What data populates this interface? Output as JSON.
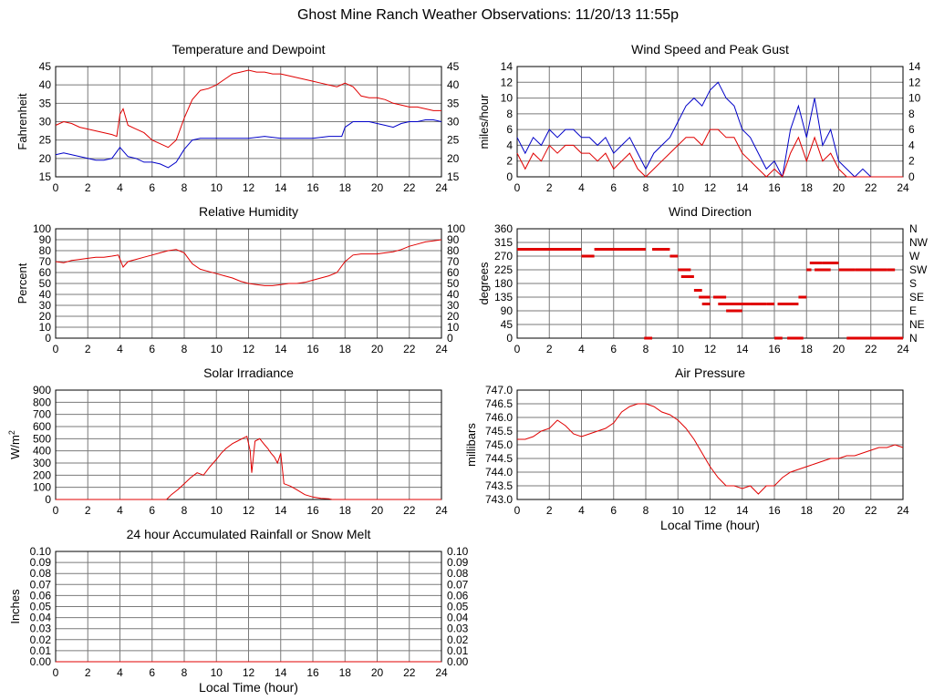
{
  "page_title": "Ghost Mine Ranch Weather Observations: 11/20/13 11:55p",
  "colors": {
    "red": "#e00000",
    "blue": "#0000c8",
    "grid": "#7a7a7a",
    "frame": "#000000"
  },
  "chart_data": [
    {
      "id": "temperature",
      "type": "line",
      "title": "Temperature and Dewpoint",
      "ylabel": "Fahrenheit",
      "xlabel": "",
      "xlim": [
        0,
        24
      ],
      "ylim": [
        15,
        45
      ],
      "xticks": [
        "0",
        "2",
        "4",
        "6",
        "8",
        "10",
        "12",
        "14",
        "16",
        "18",
        "20",
        "22",
        "24"
      ],
      "yticks": [
        "15",
        "20",
        "25",
        "30",
        "35",
        "40",
        "45"
      ],
      "right_axis": true,
      "series": [
        {
          "color": "#e00000",
          "x": [
            0,
            0.5,
            1,
            1.5,
            2,
            2.5,
            3,
            3.5,
            3.8,
            4,
            4.2,
            4.5,
            5,
            5.5,
            6,
            6.5,
            7,
            7.5,
            8,
            8.5,
            9,
            9.5,
            10,
            10.5,
            11,
            11.5,
            12,
            12.5,
            13,
            13.5,
            14,
            14.5,
            15,
            15.5,
            16,
            16.5,
            17,
            17.5,
            18,
            18.5,
            19,
            19.5,
            20,
            20.5,
            21,
            21.5,
            22,
            22.5,
            23,
            23.5,
            24
          ],
          "y": [
            29,
            30,
            29.5,
            28.5,
            28,
            27.5,
            27,
            26.5,
            26,
            32,
            33.5,
            29,
            28,
            27,
            25,
            24,
            23,
            25,
            31,
            36,
            38.5,
            39,
            40,
            41.5,
            43,
            43.5,
            44,
            43.5,
            43.5,
            43,
            43,
            42.5,
            42,
            41.5,
            41,
            40.5,
            40,
            39.5,
            40.5,
            39.5,
            37,
            36.5,
            36.5,
            36,
            35,
            34.5,
            34,
            34,
            33.5,
            33,
            33
          ]
        },
        {
          "color": "#0000c8",
          "x": [
            0,
            0.5,
            1,
            1.5,
            2,
            2.5,
            3,
            3.5,
            4,
            4.5,
            5,
            5.5,
            6,
            6.5,
            7,
            7.5,
            8,
            8.5,
            9,
            10,
            11,
            12,
            13,
            14,
            15,
            16,
            17,
            17.8,
            18,
            18.5,
            19,
            19.5,
            20,
            20.5,
            21,
            21.5,
            22,
            22.5,
            23,
            23.5,
            24
          ],
          "y": [
            21,
            21.5,
            21,
            20.5,
            20,
            19.5,
            19.5,
            20,
            23,
            20.5,
            20,
            19,
            19,
            18.5,
            17.5,
            19,
            22.5,
            25,
            25.5,
            25.5,
            25.5,
            25.5,
            26,
            25.5,
            25.5,
            25.5,
            26,
            26,
            28.5,
            30,
            30,
            30,
            29.5,
            29,
            28.5,
            29.5,
            30,
            30,
            30.5,
            30.5,
            30
          ]
        }
      ]
    },
    {
      "id": "wind_speed",
      "type": "line",
      "title": "Wind Speed and Peak Gust",
      "ylabel": "miles/hour",
      "xlabel": "",
      "xlim": [
        0,
        24
      ],
      "ylim": [
        0,
        14
      ],
      "xticks": [
        "0",
        "2",
        "4",
        "6",
        "8",
        "10",
        "12",
        "14",
        "16",
        "18",
        "20",
        "22",
        "24"
      ],
      "yticks": [
        "0",
        "2",
        "4",
        "6",
        "8",
        "10",
        "12",
        "14"
      ],
      "right_axis": true,
      "series": [
        {
          "color": "#0000c8",
          "x": [
            0,
            0.5,
            1,
            1.5,
            2,
            2.5,
            3,
            3.5,
            4,
            4.5,
            5,
            5.5,
            6,
            6.5,
            7,
            7.5,
            8,
            8.5,
            9,
            9.5,
            10,
            10.5,
            11,
            11.5,
            12,
            12.5,
            13,
            13.5,
            14,
            14.5,
            15,
            15.5,
            16,
            16.5,
            17,
            17.5,
            18,
            18.5,
            19,
            19.5,
            20,
            20.5,
            21,
            21.5,
            22,
            22.5,
            23,
            23.5,
            24
          ],
          "y": [
            5,
            3,
            5,
            4,
            6,
            5,
            6,
            6,
            5,
            5,
            4,
            5,
            3,
            4,
            5,
            3,
            1,
            3,
            4,
            5,
            7,
            9,
            10,
            9,
            11,
            12,
            10,
            9,
            6,
            5,
            3,
            1,
            2,
            0,
            6,
            9,
            5,
            10,
            4,
            6,
            2,
            1,
            0,
            1,
            0,
            0,
            0,
            0,
            0
          ]
        },
        {
          "color": "#e00000",
          "x": [
            0,
            0.5,
            1,
            1.5,
            2,
            2.5,
            3,
            3.5,
            4,
            4.5,
            5,
            5.5,
            6,
            6.5,
            7,
            7.5,
            8,
            8.5,
            9,
            9.5,
            10,
            10.5,
            11,
            11.5,
            12,
            12.5,
            13,
            13.5,
            14,
            14.5,
            15,
            15.5,
            16,
            16.5,
            17,
            17.5,
            18,
            18.5,
            19,
            19.5,
            20,
            20.5,
            21,
            21.5,
            22,
            22.5,
            23,
            23.5,
            24
          ],
          "y": [
            3,
            1,
            3,
            2,
            4,
            3,
            4,
            4,
            3,
            3,
            2,
            3,
            1,
            2,
            3,
            1,
            0,
            1,
            2,
            3,
            4,
            5,
            5,
            4,
            6,
            6,
            5,
            5,
            3,
            2,
            1,
            0,
            1,
            0,
            3,
            5,
            2,
            5,
            2,
            3,
            1,
            0,
            0,
            0,
            0,
            0,
            0,
            0,
            0
          ]
        }
      ]
    },
    {
      "id": "humidity",
      "type": "line",
      "title": "Relative Humidity",
      "ylabel": "Percent",
      "xlabel": "",
      "xlim": [
        0,
        24
      ],
      "ylim": [
        0,
        100
      ],
      "xticks": [
        "0",
        "2",
        "4",
        "6",
        "8",
        "10",
        "12",
        "14",
        "16",
        "18",
        "20",
        "22",
        "24"
      ],
      "yticks": [
        "0",
        "10",
        "20",
        "30",
        "40",
        "50",
        "60",
        "70",
        "80",
        "90",
        "100"
      ],
      "right_axis": true,
      "series": [
        {
          "color": "#e00000",
          "x": [
            0,
            0.5,
            1,
            1.5,
            2,
            2.5,
            3,
            3.5,
            3.9,
            4.2,
            4.5,
            5,
            5.5,
            6,
            6.5,
            7,
            7.5,
            8,
            8.5,
            9,
            9.5,
            10,
            10.5,
            11,
            11.5,
            12,
            12.5,
            13,
            13.5,
            14,
            14.5,
            15,
            15.5,
            16,
            16.5,
            17,
            17.5,
            18,
            18.5,
            19,
            19.5,
            20,
            20.5,
            21,
            21.5,
            22,
            22.5,
            23,
            23.5,
            24
          ],
          "y": [
            70,
            69,
            71,
            72,
            73,
            74,
            74,
            75,
            76,
            65,
            70,
            72,
            74,
            76,
            78,
            80,
            81,
            78,
            68,
            63,
            61,
            59,
            57,
            55,
            52,
            50,
            49,
            48,
            48,
            49,
            50,
            50,
            51,
            53,
            55,
            57,
            60,
            70,
            76,
            77,
            77,
            77,
            78,
            79,
            81,
            84,
            86,
            88,
            89,
            90
          ]
        }
      ]
    },
    {
      "id": "wind_direction",
      "type": "scatter",
      "title": "Wind Direction",
      "ylabel": "degrees",
      "xlabel": "",
      "xlim": [
        0,
        24
      ],
      "ylim": [
        0,
        360
      ],
      "xticks": [
        "0",
        "2",
        "4",
        "6",
        "8",
        "10",
        "12",
        "14",
        "16",
        "18",
        "20",
        "22",
        "24"
      ],
      "yticks": [
        "0",
        "45",
        "90",
        "135",
        "180",
        "225",
        "270",
        "315",
        "360"
      ],
      "right_ticks": [
        "N",
        "NE",
        "E",
        "SE",
        "S",
        "SW",
        "W",
        "NW",
        "N"
      ],
      "series": [
        {
          "color": "#e00000",
          "segments": [
            [
              0,
              4,
              292.5
            ],
            [
              4,
              4.8,
              270
            ],
            [
              4.8,
              8,
              292.5
            ],
            [
              7.9,
              8.4,
              0
            ],
            [
              8.4,
              9.5,
              292.5
            ],
            [
              9.5,
              10,
              270
            ],
            [
              10,
              10.8,
              225
            ],
            [
              10.2,
              11,
              202.5
            ],
            [
              11,
              11.5,
              157.5
            ],
            [
              11.3,
              12,
              135
            ],
            [
              11.5,
              12,
              112.5
            ],
            [
              12.2,
              13,
              135
            ],
            [
              12.5,
              14.5,
              112.5
            ],
            [
              13,
              14,
              90
            ],
            [
              14.5,
              15.5,
              112.5
            ],
            [
              15.5,
              16,
              112.5
            ],
            [
              16,
              16.5,
              0
            ],
            [
              16.2,
              17.5,
              112.5
            ],
            [
              16.8,
              17.8,
              0
            ],
            [
              17.5,
              18,
              135
            ],
            [
              18,
              18.3,
              225
            ],
            [
              18.2,
              19,
              247.5
            ],
            [
              18.5,
              19.5,
              225
            ],
            [
              19,
              20,
              247.5
            ],
            [
              20,
              21,
              225
            ],
            [
              20.5,
              22,
              0
            ],
            [
              21,
              23,
              225
            ],
            [
              22,
              24,
              0
            ],
            [
              23,
              23.5,
              225
            ]
          ]
        }
      ]
    },
    {
      "id": "solar",
      "type": "line",
      "title": "Solar Irradiance",
      "ylabel": "W/m",
      "ylabel_sup": "2",
      "xlabel": "",
      "xlim": [
        0,
        24
      ],
      "ylim": [
        0,
        900
      ],
      "xticks": [
        "0",
        "2",
        "4",
        "6",
        "8",
        "10",
        "12",
        "14",
        "16",
        "18",
        "20",
        "22",
        "24"
      ],
      "yticks": [
        "0",
        "100",
        "200",
        "300",
        "400",
        "500",
        "600",
        "700",
        "800",
        "900"
      ],
      "right_axis": false,
      "series": [
        {
          "color": "#e00000",
          "x": [
            0,
            6.9,
            7.2,
            7.6,
            8,
            8.4,
            8.8,
            9.2,
            9.6,
            10,
            10.3,
            10.6,
            11,
            11.3,
            11.6,
            11.9,
            12.1,
            12.2,
            12.4,
            12.7,
            13,
            13.2,
            13.4,
            13.6,
            13.8,
            14,
            14.2,
            14.6,
            15,
            15.5,
            16,
            16.5,
            17,
            17.2,
            18,
            24
          ],
          "y": [
            0,
            0,
            40,
            80,
            130,
            180,
            220,
            200,
            270,
            330,
            380,
            420,
            460,
            480,
            500,
            520,
            400,
            220,
            480,
            500,
            450,
            420,
            380,
            350,
            300,
            380,
            130,
            110,
            80,
            40,
            20,
            10,
            5,
            0,
            0,
            0
          ]
        }
      ]
    },
    {
      "id": "pressure",
      "type": "line",
      "title": "Air Pressure",
      "ylabel": "millibars",
      "xlabel": "Local Time (hour)",
      "xlim": [
        0,
        24
      ],
      "ylim": [
        743.0,
        747.0
      ],
      "xticks": [
        "0",
        "2",
        "4",
        "6",
        "8",
        "10",
        "12",
        "14",
        "16",
        "18",
        "20",
        "22",
        "24"
      ],
      "yticks": [
        "743.0",
        "743.5",
        "744.0",
        "744.5",
        "745.0",
        "745.5",
        "746.0",
        "746.5",
        "747.0"
      ],
      "right_axis": false,
      "series": [
        {
          "color": "#e00000",
          "x": [
            0,
            0.5,
            1,
            1.5,
            2,
            2.5,
            3,
            3.5,
            4,
            4.5,
            5,
            5.5,
            6,
            6.5,
            7,
            7.5,
            8,
            8.5,
            9,
            9.5,
            10,
            10.5,
            11,
            11.5,
            12,
            12.5,
            13,
            13.5,
            14,
            14.5,
            15,
            15.5,
            16,
            16.5,
            17,
            17.5,
            18,
            18.5,
            19,
            19.5,
            20,
            20.5,
            21,
            21.5,
            22,
            22.5,
            23,
            23.5,
            24
          ],
          "y": [
            745.2,
            745.2,
            745.3,
            745.5,
            745.6,
            745.9,
            745.7,
            745.4,
            745.3,
            745.4,
            745.5,
            745.6,
            745.8,
            746.2,
            746.4,
            746.5,
            746.5,
            746.4,
            746.2,
            746.1,
            745.9,
            745.6,
            745.2,
            744.7,
            744.2,
            743.8,
            743.5,
            743.5,
            743.4,
            743.5,
            743.2,
            743.5,
            743.5,
            743.8,
            744.0,
            744.1,
            744.2,
            744.3,
            744.4,
            744.5,
            744.5,
            744.6,
            744.6,
            744.7,
            744.8,
            744.9,
            744.9,
            745.0,
            744.9
          ]
        }
      ]
    },
    {
      "id": "rainfall",
      "type": "line",
      "title": "24 hour Accumulated Rainfall or Snow Melt",
      "ylabel": "Inches",
      "xlabel": "Local Time (hour)",
      "xlim": [
        0,
        24
      ],
      "ylim": [
        0,
        0.1
      ],
      "xticks": [
        "0",
        "2",
        "4",
        "6",
        "8",
        "10",
        "12",
        "14",
        "16",
        "18",
        "20",
        "22",
        "24"
      ],
      "yticks": [
        "0.00",
        "0.01",
        "0.02",
        "0.03",
        "0.04",
        "0.05",
        "0.06",
        "0.07",
        "0.08",
        "0.09",
        "0.10"
      ],
      "right_axis": true,
      "series": [
        {
          "color": "#e00000",
          "x": [
            0,
            24
          ],
          "y": [
            0,
            0
          ]
        }
      ]
    }
  ]
}
